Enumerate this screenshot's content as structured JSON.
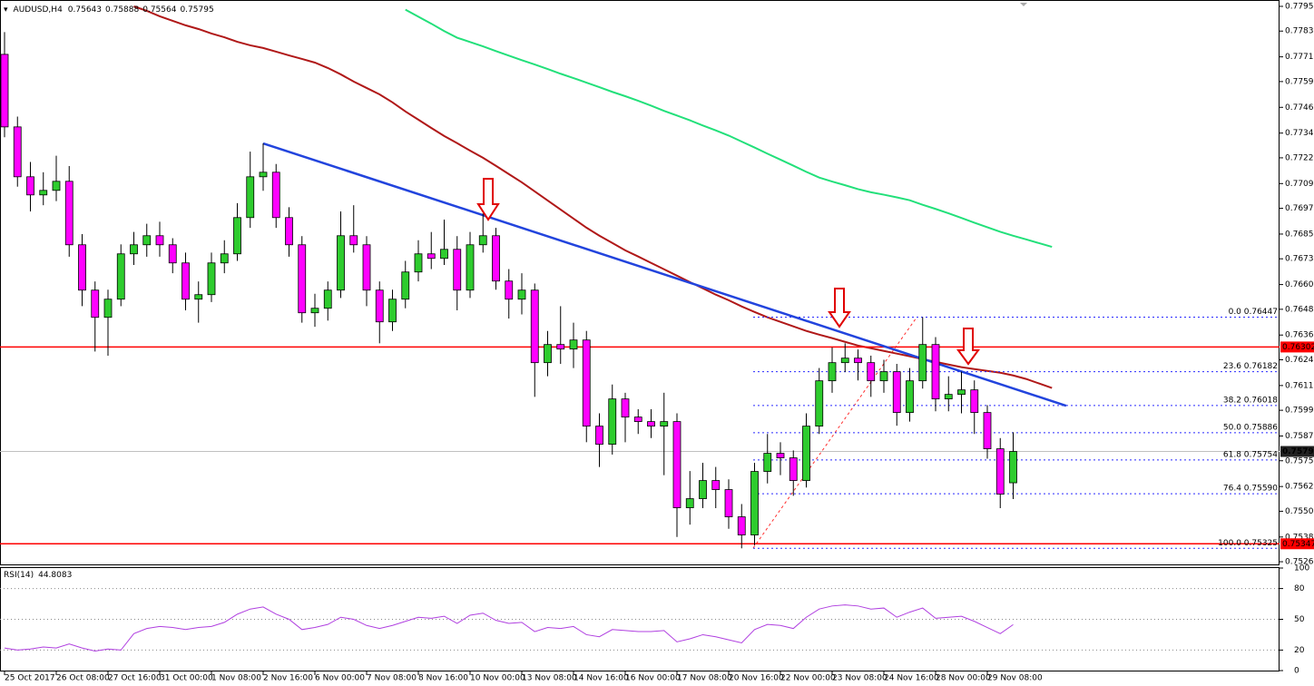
{
  "chart_data": {
    "type": "candlestick",
    "title": "AUDUSD,H4",
    "header_values": [
      0.75643,
      0.75888,
      0.75564,
      0.75795
    ],
    "categories": [
      "25 Oct 2017",
      null,
      null,
      null,
      "26 Oct 08:00",
      null,
      null,
      null,
      "27 Oct 16:00",
      null,
      null,
      null,
      "31 Oct 00:00",
      null,
      null,
      null,
      "1 Nov 08:00",
      null,
      null,
      null,
      "2 Nov 16:00",
      null,
      null,
      null,
      "6 Nov 00:00",
      null,
      null,
      null,
      "7 Nov 08:00",
      null,
      null,
      null,
      "8 Nov 16:00",
      null,
      null,
      null,
      "10 Nov 00:00",
      null,
      null,
      null,
      "13 Nov 08:00",
      null,
      null,
      null,
      "14 Nov 16:00",
      null,
      null,
      null,
      "16 Nov 00:00",
      null,
      null,
      null,
      "17 Nov 08:00",
      null,
      null,
      null,
      "20 Nov 16:00",
      null,
      null,
      null,
      "22 Nov 00:00",
      null,
      null,
      null,
      "23 Nov 08:00",
      null,
      null,
      null,
      "24 Nov 16:00",
      null,
      null,
      null,
      "28 Nov 00:00",
      null,
      null,
      null,
      "29 Nov 08:00",
      null,
      null,
      null,
      null,
      null
    ],
    "open": [
      0.77722,
      0.7737,
      0.77128,
      0.7704,
      0.77062,
      0.77106,
      0.76798,
      0.76578,
      0.76446,
      0.76534,
      0.76754,
      0.76798,
      0.76842,
      0.76798,
      0.7671,
      0.76534,
      0.76556,
      0.7671,
      0.76754,
      0.7693,
      0.77128,
      0.7715,
      0.7693,
      0.76798,
      0.76468,
      0.7649,
      0.76578,
      0.76842,
      0.76798,
      0.76578,
      0.76424,
      0.76534,
      0.76666,
      0.76754,
      0.76732,
      0.76776,
      0.76578,
      0.76798,
      0.76842,
      0.76622,
      0.76534,
      0.76578,
      0.76226,
      0.76314,
      0.76292,
      0.76336,
      0.75918,
      0.7583,
      0.7605,
      0.75962,
      0.7594,
      0.75918,
      0.7594,
      0.75522,
      0.75566,
      0.75654,
      0.7561,
      0.75478,
      0.7539,
      0.75698,
      0.75786,
      0.75764,
      0.75654,
      0.75918,
      0.76138,
      0.76226,
      0.76248,
      0.76226,
      0.76138,
      0.76182,
      0.75984,
      0.76138,
      0.76314,
      0.7605,
      0.76072,
      0.76094,
      0.75984,
      0.75808,
      0.75643,
      null,
      null,
      null
    ],
    "high": [
      0.7783,
      0.7742,
      0.772,
      0.7715,
      0.7723,
      0.7718,
      0.7685,
      0.7662,
      0.7658,
      0.768,
      0.7686,
      0.769,
      0.7691,
      0.7683,
      0.7676,
      0.7662,
      0.7676,
      0.7682,
      0.77,
      0.7725,
      0.7729,
      0.7719,
      0.7698,
      0.7684,
      0.7656,
      0.7662,
      0.7696,
      0.7699,
      0.7684,
      0.7662,
      0.7658,
      0.7672,
      0.7682,
      0.7686,
      0.7692,
      0.7684,
      0.7686,
      0.7695,
      0.7688,
      0.7668,
      0.7666,
      0.7661,
      0.7638,
      0.765,
      0.7642,
      0.7638,
      0.7598,
      0.7612,
      0.7608,
      0.76,
      0.76,
      0.7608,
      0.7598,
      0.757,
      0.7574,
      0.7572,
      0.7566,
      0.7554,
      0.7574,
      0.7588,
      0.7584,
      0.758,
      0.7598,
      0.762,
      0.763,
      0.7632,
      0.7629,
      0.7626,
      0.7624,
      0.7622,
      0.762,
      0.76447,
      0.7635,
      0.7616,
      0.76182,
      0.7614,
      0.7602,
      0.7586,
      0.75888,
      null,
      null,
      null
    ],
    "low": [
      0.7732,
      0.7708,
      0.7696,
      0.7699,
      0.7701,
      0.7674,
      0.765,
      0.7628,
      0.7626,
      0.765,
      0.767,
      0.7674,
      0.7674,
      0.7666,
      0.7648,
      0.7642,
      0.7652,
      0.7666,
      0.7672,
      0.7688,
      0.7706,
      0.7688,
      0.7674,
      0.7642,
      0.764,
      0.7643,
      0.7654,
      0.7676,
      0.765,
      0.7632,
      0.7638,
      0.7649,
      0.7662,
      0.7668,
      0.767,
      0.7648,
      0.7654,
      0.7676,
      0.7658,
      0.7644,
      0.7646,
      0.7606,
      0.7616,
      0.7622,
      0.762,
      0.7584,
      0.7572,
      0.7578,
      0.7584,
      0.7588,
      0.7586,
      0.7568,
      0.7538,
      0.7544,
      0.7552,
      0.7552,
      0.7542,
      0.75325,
      0.7534,
      0.7564,
      0.7568,
      0.7558,
      0.7562,
      0.7588,
      0.7608,
      0.7618,
      0.7614,
      0.7606,
      0.7608,
      0.7592,
      0.7594,
      0.761,
      0.7599,
      0.7599,
      0.7598,
      0.7588,
      0.7576,
      0.7552,
      0.75564,
      null,
      null,
      null
    ],
    "close": [
      0.7737,
      0.77128,
      0.7704,
      0.77062,
      0.77106,
      0.76798,
      0.76578,
      0.76446,
      0.76534,
      0.76754,
      0.76798,
      0.76842,
      0.76798,
      0.7671,
      0.76534,
      0.76556,
      0.7671,
      0.76754,
      0.7693,
      0.77128,
      0.7715,
      0.7693,
      0.76798,
      0.76468,
      0.7649,
      0.76578,
      0.76842,
      0.76798,
      0.76578,
      0.76424,
      0.76534,
      0.76666,
      0.76754,
      0.76732,
      0.76776,
      0.76578,
      0.76798,
      0.76842,
      0.76622,
      0.76534,
      0.76578,
      0.76226,
      0.76314,
      0.76292,
      0.76336,
      0.75918,
      0.7583,
      0.7605,
      0.75962,
      0.7594,
      0.75918,
      0.7594,
      0.75522,
      0.75566,
      0.75654,
      0.7561,
      0.75478,
      0.7539,
      0.75698,
      0.75786,
      0.75764,
      0.75654,
      0.75918,
      0.76138,
      0.76226,
      0.76248,
      0.76226,
      0.76138,
      0.76182,
      0.75984,
      0.76138,
      0.76314,
      0.7605,
      0.76072,
      0.76094,
      0.75984,
      0.75808,
      0.75588,
      0.75795,
      null,
      null,
      null
    ],
    "colors": {
      "up": "#2ecc2e",
      "down": "#ff00ff"
    },
    "ylim": [
      0.75247,
      0.77977
    ],
    "yticks": [
      0.77955,
      0.77835,
      {
        "value": 0.7771,
        "label": "0.77710"
      },
      {
        "value": 0.7759,
        "label": "0.77590"
      },
      0.77465,
      {
        "value": 0.7734,
        "label": "0.77340"
      },
      {
        "value": 0.7722,
        "label": "0.77220"
      },
      0.77095,
      0.76975,
      {
        "value": 0.7685,
        "label": "0.76850"
      },
      {
        "value": 0.7673,
        "label": "0.76730"
      },
      0.76605,
      0.76485,
      {
        "value": 0.7636,
        "label": "0.76360"
      },
      {
        "value": 0.7624,
        "label": "0.76240"
      },
      0.76115,
      0.75995,
      {
        "value": 0.7587,
        "label": "0.75870"
      },
      {
        "value": 0.7575,
        "label": "0.75750"
      },
      0.75625,
      0.75505,
      {
        "value": 0.7538,
        "label": "0.75380"
      },
      {
        "value": 0.7526,
        "label": "0.75260"
      }
    ],
    "moving_averages": [
      {
        "color": "#b01818",
        "values": [
          null,
          null,
          null,
          null,
          null,
          null,
          null,
          null,
          null,
          null,
          0.77955,
          0.77933,
          0.77907,
          0.77885,
          0.77863,
          0.77845,
          0.77823,
          0.77805,
          0.77783,
          0.77766,
          0.77753,
          0.77735,
          0.77717,
          0.777,
          0.77682,
          0.77656,
          0.77625,
          0.7759,
          0.77559,
          0.77528,
          0.77489,
          0.77445,
          0.77405,
          0.77365,
          0.77326,
          0.77291,
          0.77255,
          0.7722,
          0.77181,
          0.77141,
          0.77101,
          0.77057,
          0.77013,
          0.76969,
          0.76925,
          0.76881,
          0.76842,
          0.76807,
          0.76771,
          0.76741,
          0.7671,
          0.76679,
          0.76648,
          0.76617,
          0.76587,
          0.76556,
          0.76529,
          0.76499,
          0.76472,
          0.76446,
          0.76424,
          0.76402,
          0.7638,
          0.76362,
          0.76345,
          0.76327,
          0.76309,
          0.76296,
          0.76283,
          0.7627,
          0.76257,
          0.76243,
          0.7623,
          0.76217,
          0.76204,
          0.76195,
          0.76186,
          0.76177,
          0.76164,
          0.76147,
          0.76125,
          0.76103
        ]
      },
      {
        "color": "#22e07a",
        "values": [
          null,
          null,
          null,
          null,
          null,
          null,
          null,
          null,
          null,
          null,
          null,
          null,
          null,
          null,
          null,
          null,
          null,
          null,
          null,
          null,
          null,
          null,
          null,
          null,
          null,
          null,
          null,
          null,
          null,
          null,
          null,
          0.77939,
          0.77905,
          0.77871,
          0.77835,
          0.77803,
          0.77782,
          0.77761,
          0.77738,
          0.77716,
          0.77694,
          0.77673,
          0.77651,
          0.77628,
          0.77607,
          0.77585,
          0.77563,
          0.7754,
          0.77519,
          0.77497,
          0.77473,
          0.77448,
          0.77425,
          0.77402,
          0.77377,
          0.77353,
          0.77328,
          0.77299,
          0.7727,
          0.7724,
          0.77211,
          0.77182,
          0.77152,
          0.77124,
          0.77105,
          0.77087,
          0.77068,
          0.77053,
          0.77041,
          0.77028,
          0.77014,
          0.76992,
          0.76972,
          0.76951,
          0.76928,
          0.76905,
          0.76883,
          0.76861,
          0.76842,
          0.76824,
          0.76806,
          0.76788
        ]
      }
    ],
    "trendline": {
      "color": "#2244dd",
      "x": [
        20,
        82.1
      ],
      "values": [
        0.7729,
        0.76017
      ]
    },
    "levels": [
      {
        "value": 0.76302,
        "color": "#ff0000"
      },
      {
        "value": 0.75347,
        "color": "#ff0000"
      }
    ],
    "last_price": {
      "value": 0.75795,
      "color": "#c0c0c0"
    },
    "fibonacci": {
      "color": "#2a2aff",
      "levels": [
        {
          "label": "0.0 0.76447",
          "value": 0.76447
        },
        {
          "label": "23.6 0.76182",
          "value": 0.76182
        },
        {
          "label": "38.2 0.76018",
          "value": 0.76018
        },
        {
          "label": "50.0 0.75886",
          "value": 0.75886
        },
        {
          "label": "61.8 0.75754",
          "value": 0.75754
        },
        {
          "label": "76.4 0.75590",
          "value": 0.7559
        },
        {
          "label": "100.0 0.75325",
          "value": 0.75325
        }
      ]
    },
    "rsi": {
      "title": "RSI(14)",
      "current": 44.8083,
      "color": "#b040e0",
      "ylim": [
        0,
        100
      ],
      "yticks": [
        100,
        80,
        50,
        20,
        0
      ],
      "levels": [
        80,
        50,
        20
      ],
      "values": [
        22,
        20,
        21,
        23,
        22,
        26,
        22,
        19,
        21,
        20,
        36,
        41,
        43,
        42,
        40,
        42,
        43,
        47,
        55,
        60,
        62,
        55,
        50,
        40,
        42,
        45,
        52,
        50,
        44,
        41,
        44,
        48,
        52,
        51,
        53,
        46,
        54,
        56,
        49,
        46,
        47,
        38,
        42,
        41,
        43,
        35,
        33,
        40,
        39,
        38,
        38,
        39,
        28,
        31,
        35,
        33,
        30,
        27,
        40,
        45,
        44,
        41,
        52,
        60,
        63,
        64,
        63,
        60,
        61,
        52,
        57,
        61,
        51,
        52,
        53,
        48,
        42,
        36,
        44.8083,
        null,
        null,
        null
      ]
    }
  }
}
